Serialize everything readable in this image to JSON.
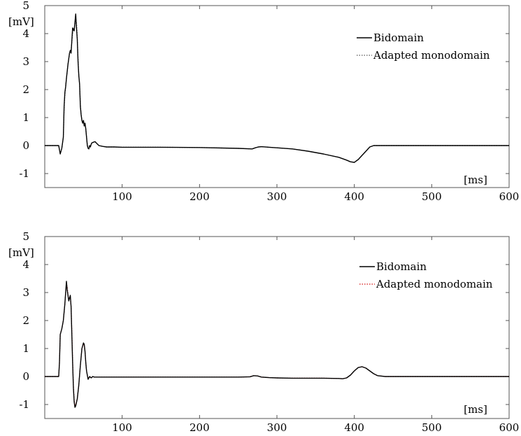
{
  "chart_data": [
    {
      "type": "line",
      "ylabel": "[mV]",
      "xlabel": "[ms]",
      "xlim": [
        0,
        600
      ],
      "ylim": [
        -1.5,
        5
      ],
      "xticks": [
        "100",
        "200",
        "300",
        "400",
        "500",
        "600"
      ],
      "yticks": [
        "-1",
        "0",
        "1",
        "2",
        "3",
        "4",
        "5"
      ],
      "grid": false,
      "legend_position": "top-right",
      "series": [
        {
          "name": "Bidomain",
          "style": "solid",
          "color": "#000000",
          "x": [
            0,
            18,
            20,
            22,
            24,
            25,
            26,
            27,
            28,
            30,
            32,
            33,
            34,
            36,
            38,
            40,
            41,
            42,
            43,
            44,
            45,
            46,
            47,
            48,
            49,
            50,
            51,
            52,
            53,
            54,
            55,
            56,
            57,
            58,
            59,
            60,
            61,
            63,
            65,
            67,
            70,
            75,
            80,
            90,
            100,
            150,
            200,
            250,
            268,
            272,
            276,
            280,
            290,
            300,
            320,
            340,
            360,
            380,
            390,
            395,
            400,
            405,
            410,
            415,
            420,
            425,
            430,
            450,
            500,
            550,
            600
          ],
          "y": [
            0,
            0,
            -0.3,
            -0.1,
            0.3,
            1.4,
            1.9,
            2.1,
            2.4,
            2.9,
            3.3,
            3.4,
            3.3,
            4.2,
            4.1,
            4.7,
            4.2,
            3.8,
            3.0,
            2.5,
            2.2,
            1.4,
            1.1,
            0.9,
            0.8,
            0.9,
            0.7,
            0.8,
            0.6,
            0.3,
            0.0,
            -0.1,
            -0.12,
            0.0,
            -0.05,
            0.05,
            0.1,
            0.12,
            0.14,
            0.08,
            0.0,
            -0.03,
            -0.05,
            -0.05,
            -0.06,
            -0.06,
            -0.07,
            -0.1,
            -0.12,
            -0.08,
            -0.05,
            -0.04,
            -0.06,
            -0.08,
            -0.12,
            -0.2,
            -0.3,
            -0.42,
            -0.52,
            -0.58,
            -0.6,
            -0.5,
            -0.35,
            -0.2,
            -0.05,
            0.0,
            0.0,
            0.0,
            0.0,
            0.0,
            0.0
          ]
        },
        {
          "name": "Adapted monodomain",
          "style": "dotted",
          "color": "#555555",
          "x": [
            0,
            18,
            20,
            22,
            24,
            25,
            26,
            27,
            28,
            30,
            32,
            33,
            34,
            36,
            38,
            40,
            41,
            42,
            43,
            44,
            45,
            46,
            47,
            48,
            49,
            50,
            51,
            52,
            53,
            54,
            55,
            56,
            57,
            58,
            59,
            60,
            61,
            63,
            65,
            67,
            70,
            75,
            80,
            90,
            100,
            150,
            200,
            250,
            268,
            272,
            276,
            280,
            290,
            300,
            320,
            340,
            360,
            380,
            390,
            395,
            400,
            405,
            410,
            415,
            420,
            425,
            430,
            450,
            500,
            550,
            600
          ],
          "y": [
            0,
            0,
            -0.3,
            -0.1,
            0.3,
            1.3,
            1.8,
            2.1,
            2.4,
            2.9,
            3.3,
            3.4,
            3.4,
            4.0,
            4.2,
            4.5,
            4.4,
            3.9,
            3.1,
            2.5,
            2.2,
            1.5,
            1.1,
            0.9,
            0.8,
            0.85,
            0.7,
            0.75,
            0.6,
            0.3,
            0.05,
            -0.05,
            -0.1,
            0.0,
            -0.03,
            0.05,
            0.1,
            0.12,
            0.14,
            0.08,
            0.0,
            -0.03,
            -0.05,
            -0.05,
            -0.06,
            -0.06,
            -0.07,
            -0.1,
            -0.12,
            -0.08,
            -0.05,
            -0.04,
            -0.06,
            -0.08,
            -0.12,
            -0.2,
            -0.3,
            -0.42,
            -0.52,
            -0.58,
            -0.6,
            -0.5,
            -0.35,
            -0.2,
            -0.05,
            0.0,
            0.0,
            0.0,
            0.0,
            0.0,
            0.0
          ]
        }
      ]
    },
    {
      "type": "line",
      "ylabel": "[mV]",
      "xlabel": "[ms]",
      "xlim": [
        0,
        600
      ],
      "ylim": [
        -1.5,
        5
      ],
      "xticks": [
        "100",
        "200",
        "300",
        "400",
        "500",
        "600"
      ],
      "yticks": [
        "-1",
        "0",
        "1",
        "2",
        "3",
        "4",
        "5"
      ],
      "grid": false,
      "legend_position": "top-right",
      "series": [
        {
          "name": "Bidomain",
          "style": "solid",
          "color": "#000000",
          "x": [
            0,
            18,
            19,
            20,
            22,
            24,
            26,
            27,
            28,
            29,
            30,
            31,
            32,
            33,
            34,
            35,
            36,
            37,
            38,
            39,
            40,
            42,
            44,
            46,
            48,
            50,
            51,
            52,
            53,
            54,
            56,
            58,
            60,
            62,
            64,
            66,
            70,
            80,
            100,
            150,
            200,
            250,
            265,
            270,
            275,
            280,
            290,
            300,
            320,
            340,
            360,
            380,
            385,
            390,
            395,
            400,
            405,
            410,
            415,
            420,
            425,
            430,
            440,
            450,
            500,
            550,
            600
          ],
          "y": [
            0,
            0,
            0.5,
            1.5,
            1.7,
            2.0,
            2.6,
            3.0,
            3.4,
            3.1,
            2.9,
            2.7,
            2.8,
            2.9,
            2.5,
            1.5,
            0.5,
            -0.4,
            -0.9,
            -1.1,
            -1.05,
            -0.8,
            -0.3,
            0.4,
            1.0,
            1.2,
            1.15,
            0.9,
            0.5,
            0.2,
            -0.1,
            0.0,
            -0.05,
            0.0,
            -0.02,
            -0.02,
            -0.02,
            -0.02,
            -0.02,
            -0.02,
            -0.02,
            -0.02,
            -0.01,
            0.03,
            0.02,
            -0.02,
            -0.04,
            -0.05,
            -0.06,
            -0.06,
            -0.06,
            -0.07,
            -0.08,
            -0.05,
            0.05,
            0.2,
            0.32,
            0.35,
            0.3,
            0.2,
            0.1,
            0.03,
            0.0,
            0.0,
            0.0,
            0.0,
            0.0
          ]
        },
        {
          "name": "Adapted monodomain",
          "style": "dotted",
          "color": "#d41111",
          "x": [
            0,
            18,
            19,
            20,
            22,
            24,
            26,
            27,
            28,
            29,
            30,
            31,
            32,
            33,
            34,
            35,
            36,
            37,
            38,
            39,
            40,
            42,
            44,
            46,
            48,
            50,
            51,
            52,
            53,
            54,
            56,
            58,
            60,
            62,
            64,
            66,
            70,
            80,
            100,
            150,
            200,
            250,
            265,
            270,
            275,
            280,
            290,
            300,
            320,
            340,
            360,
            380,
            385,
            390,
            395,
            400,
            405,
            410,
            415,
            420,
            425,
            430,
            440,
            450,
            500,
            550,
            600
          ],
          "y": [
            0,
            0,
            0.5,
            1.5,
            1.7,
            2.0,
            2.6,
            3.0,
            3.3,
            3.2,
            2.95,
            2.75,
            2.8,
            2.85,
            2.5,
            1.6,
            0.6,
            -0.3,
            -0.85,
            -1.05,
            -1.0,
            -0.8,
            -0.3,
            0.4,
            1.0,
            1.15,
            1.1,
            0.9,
            0.5,
            0.2,
            -0.08,
            0.0,
            -0.05,
            0.0,
            -0.02,
            -0.02,
            -0.02,
            -0.02,
            -0.02,
            -0.02,
            -0.02,
            -0.02,
            -0.01,
            0.03,
            0.02,
            -0.02,
            -0.04,
            -0.05,
            -0.06,
            -0.06,
            -0.06,
            -0.07,
            -0.08,
            -0.05,
            0.05,
            0.2,
            0.32,
            0.35,
            0.3,
            0.2,
            0.1,
            0.03,
            0.0,
            0.0,
            0.0,
            0.0,
            0.0
          ]
        }
      ]
    }
  ]
}
